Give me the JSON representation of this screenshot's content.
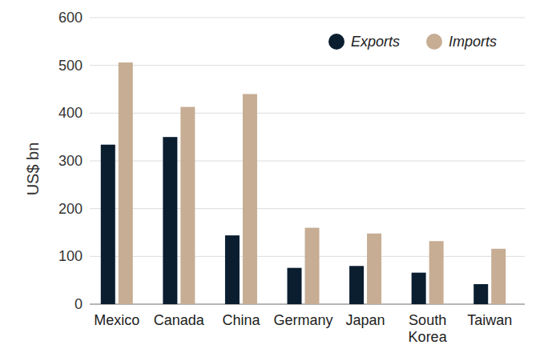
{
  "chart_data": {
    "type": "bar",
    "y_label": "US$ bn",
    "categories": [
      "Mexico",
      "Canada",
      "China",
      "Germany",
      "Japan",
      "South Korea",
      "Taiwan"
    ],
    "series": [
      {
        "name": "Exports",
        "color": "#0b1e30",
        "values": [
          334,
          350,
          144,
          76,
          80,
          66,
          42
        ]
      },
      {
        "name": "Imports",
        "color": "#c6ad94",
        "values": [
          506,
          413,
          440,
          160,
          148,
          132,
          116
        ]
      }
    ],
    "ylim": [
      0,
      600
    ],
    "yticks": [
      0,
      100,
      200,
      300,
      400,
      500,
      600
    ],
    "grid": true,
    "legend": "upper right"
  }
}
